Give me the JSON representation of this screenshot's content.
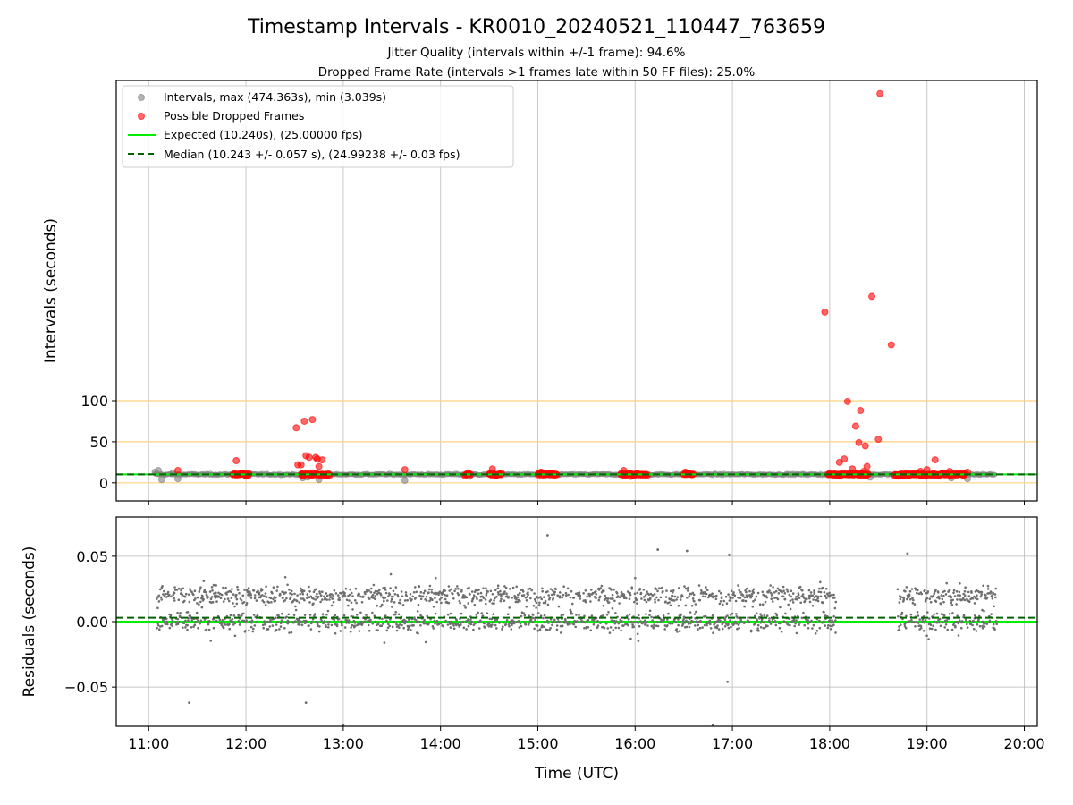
{
  "figure": {
    "title": "Timestamp Intervals - KR0010_20240521_110447_763659",
    "subtitle_1": "Jitter Quality (intervals within +/-1 frame): 94.6%",
    "subtitle_2": "Dropped Frame Rate (intervals >1 frames late within 50 FF files): 25.0%"
  },
  "chart_data": [
    {
      "type": "scatter",
      "ylabel": "Intervals (seconds)",
      "xlabel": "",
      "xlim": [
        "10:40",
        "20:08"
      ],
      "ylim": [
        -22,
        490
      ],
      "yticks": [
        0,
        50,
        100
      ],
      "x_tick_labels": [
        "11:00",
        "12:00",
        "13:00",
        "14:00",
        "15:00",
        "16:00",
        "17:00",
        "18:00",
        "19:00",
        "20:00"
      ],
      "grid": "vertical",
      "legend_placement": "top-left",
      "reference_lines": [
        {
          "name": "Expected (10.240s), (25.00000 fps)",
          "y": 10.24,
          "color": "#00ee00",
          "style": "solid"
        },
        {
          "name": "Median (10.243 +/- 0.057 s), (24.99238 +/- 0.03 fps)",
          "y": 10.243,
          "color": "#006400",
          "style": "dashed"
        },
        {
          "y": 0,
          "color": "#ffd27a",
          "style": "solid"
        },
        {
          "y": 50,
          "color": "#ffd27a",
          "style": "solid"
        },
        {
          "y": 100,
          "color": "#ffd27a",
          "style": "solid"
        }
      ],
      "series": [
        {
          "name": "Intervals, max (474.363s), min (3.039s)",
          "color": "#808080",
          "points": [
            [
              "11:04",
              13
            ],
            [
              "11:06",
              15
            ],
            [
              "11:08",
              4
            ],
            [
              "11:15",
              12
            ],
            [
              "11:18",
              5
            ],
            [
              "12:35",
              6
            ],
            [
              "12:38",
              7
            ],
            [
              "12:45",
              4
            ],
            [
              "13:38",
              3
            ],
            [
              "14:18",
              8
            ],
            [
              "18:25",
              7
            ],
            [
              "19:15",
              6
            ],
            [
              "19:25",
              5
            ]
          ]
        },
        {
          "name": "Possible Dropped Frames",
          "color": "#ff0000",
          "points": [
            [
              "11:18",
              15
            ],
            [
              "11:54",
              27
            ],
            [
              "12:31",
              67
            ],
            [
              "12:32",
              22
            ],
            [
              "12:34",
              22
            ],
            [
              "12:36",
              75
            ],
            [
              "12:37",
              33
            ],
            [
              "12:39",
              31
            ],
            [
              "12:41",
              77
            ],
            [
              "12:43",
              31
            ],
            [
              "12:44",
              29
            ],
            [
              "12:45",
              20
            ],
            [
              "12:47",
              28
            ],
            [
              "13:38",
              16
            ],
            [
              "14:17",
              12
            ],
            [
              "14:32",
              17
            ],
            [
              "15:02",
              13
            ],
            [
              "15:53",
              15
            ],
            [
              "16:31",
              13
            ],
            [
              "17:57",
              208
            ],
            [
              "18:06",
              25
            ],
            [
              "18:09",
              29
            ],
            [
              "18:11",
              99
            ],
            [
              "18:14",
              17
            ],
            [
              "18:16",
              69
            ],
            [
              "18:18",
              49
            ],
            [
              "18:19",
              88
            ],
            [
              "18:21",
              14
            ],
            [
              "18:22",
              45
            ],
            [
              "18:23",
              20
            ],
            [
              "18:26",
              227
            ],
            [
              "18:30",
              53
            ],
            [
              "18:31",
              474
            ],
            [
              "18:38",
              168
            ],
            [
              "18:56",
              14
            ],
            [
              "19:00",
              16
            ],
            [
              "19:05",
              28
            ],
            [
              "19:14",
              14
            ],
            [
              "19:25",
              13
            ]
          ],
          "clusters": [
            [
              "11:52",
              "12:02"
            ],
            [
              "12:34",
              "12:52"
            ],
            [
              "14:15",
              "14:19"
            ],
            [
              "14:30",
              "14:38"
            ],
            [
              "15:00",
              "15:12"
            ],
            [
              "15:51",
              "16:08"
            ],
            [
              "16:30",
              "16:36"
            ],
            [
              "17:59",
              "18:24"
            ],
            [
              "18:40",
              "19:24"
            ]
          ]
        }
      ]
    },
    {
      "type": "scatter",
      "ylabel": "Residuals (seconds)",
      "xlabel": "Time (UTC)",
      "xlim": [
        "10:40",
        "20:08"
      ],
      "ylim": [
        -0.08,
        0.08
      ],
      "yticks": [
        0.05,
        0.0,
        -0.05
      ],
      "y_tick_labels": [
        "0.05",
        "0.00",
        "−0.05"
      ],
      "x_tick_labels": [
        "11:00",
        "12:00",
        "13:00",
        "14:00",
        "15:00",
        "16:00",
        "17:00",
        "18:00",
        "19:00",
        "20:00"
      ],
      "grid": "both",
      "reference_lines": [
        {
          "y": 0.0,
          "color": "#00ee00",
          "style": "solid"
        },
        {
          "y": 0.003,
          "color": "#006400",
          "style": "dashed"
        }
      ],
      "series": [
        {
          "color": "#6e6e6e",
          "segments": [
            [
              "11:05",
              "18:04"
            ],
            [
              "18:42",
              "19:43"
            ]
          ],
          "bands": [
            {
              "center": 0.02,
              "share": 0.5
            },
            {
              "center": 0.0,
              "share": 0.5
            }
          ],
          "outliers": [
            [
              "11:25",
              -0.062
            ],
            [
              "12:37",
              -0.062
            ],
            [
              "15:06",
              0.066
            ],
            [
              "16:14",
              0.055
            ],
            [
              "16:32",
              0.054
            ],
            [
              "16:58",
              0.051
            ],
            [
              "16:57",
              -0.046
            ],
            [
              "18:48",
              0.052
            ],
            [
              "16:48",
              -0.079
            ],
            [
              "13:00",
              -0.079
            ]
          ]
        }
      ]
    }
  ]
}
